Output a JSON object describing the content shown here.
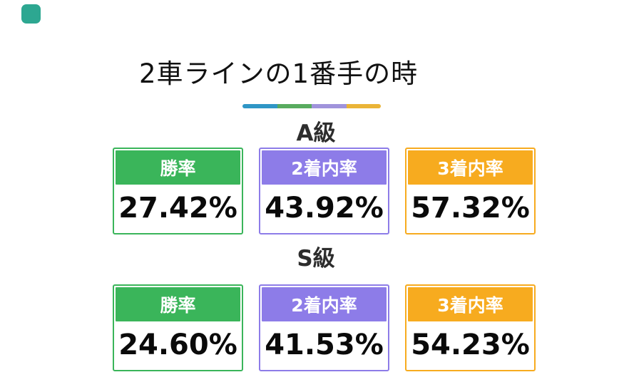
{
  "page": {
    "title": "2車ラインの1番手の時",
    "background": "#ffffff",
    "title_color": "#111111"
  },
  "logo": {
    "color": "#2DA791"
  },
  "divider": {
    "segment_colors": [
      "#2F96C6",
      "#58AB5F",
      "#A093DB",
      "#EAB437"
    ]
  },
  "theme": {
    "win_color": "#3AB55A",
    "top2_color": "#8D7CE8",
    "top3_color": "#F7AB1F",
    "label_color": "#2D2D2D",
    "value_color": "#0A0A0A"
  },
  "sections": [
    {
      "label": "A級",
      "cards": [
        {
          "header": "勝率",
          "value": "27.42%",
          "color": "#3AB55A"
        },
        {
          "header": "2着内率",
          "value": "43.92%",
          "color": "#8D7CE8"
        },
        {
          "header": "3着内率",
          "value": "57.32%",
          "color": "#F7AB1F"
        }
      ]
    },
    {
      "label": "S級",
      "cards": [
        {
          "header": "勝率",
          "value": "24.60%",
          "color": "#3AB55A"
        },
        {
          "header": "2着内率",
          "value": "41.53%",
          "color": "#8D7CE8"
        },
        {
          "header": "3着内率",
          "value": "54.23%",
          "color": "#F7AB1F"
        }
      ]
    }
  ],
  "chart_data": {
    "type": "table",
    "title": "2車ラインの1番手の時",
    "columns": [
      "勝率",
      "2着内率",
      "3着内率"
    ],
    "rows": [
      {
        "label": "A級",
        "values": [
          27.42,
          43.92,
          57.32
        ]
      },
      {
        "label": "S級",
        "values": [
          24.6,
          41.53,
          54.23
        ]
      }
    ],
    "units": "%",
    "column_colors": [
      "#3AB55A",
      "#8D7CE8",
      "#F7AB1F"
    ]
  }
}
